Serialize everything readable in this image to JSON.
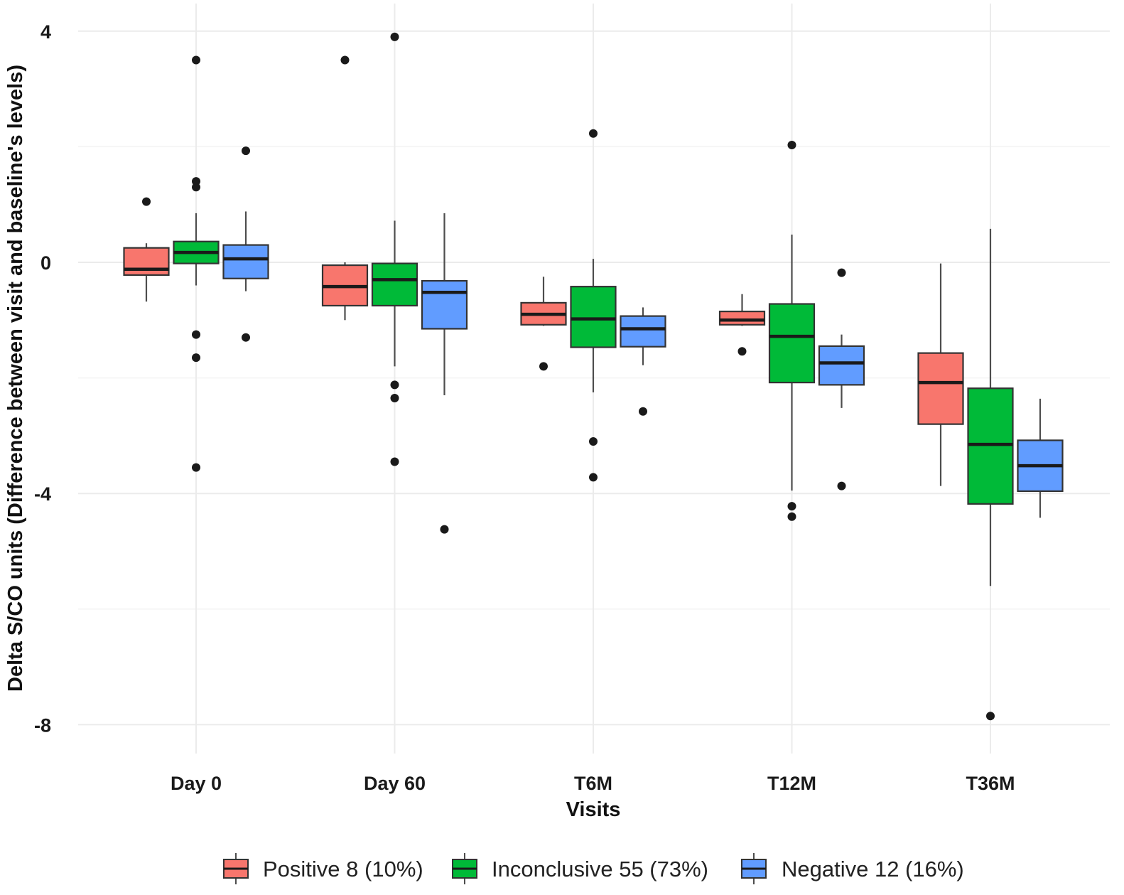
{
  "chart_data": {
    "type": "boxplot",
    "title": "",
    "xlabel": "Visits",
    "ylabel": "Delta S/CO units (Difference between visit and baseline's levels)",
    "ylim": [
      -8.5,
      4.4
    ],
    "yticks": [
      4,
      0,
      -4,
      -8
    ],
    "ytick_labels": [
      "4",
      "0",
      "-4",
      "-8"
    ],
    "grid": true,
    "legend_position": "bottom",
    "categories": [
      "Day 0",
      "Day 60",
      "T6M",
      "T12M",
      "T36M"
    ],
    "series": [
      {
        "name": "Positive 8 (10%)",
        "color": "#F8766D",
        "boxes": [
          {
            "whislo": -0.68,
            "q1": -0.22,
            "med": -0.12,
            "q3": 0.25,
            "whishi": 0.33,
            "fliers": [
              1.05
            ]
          },
          {
            "whislo": -1.0,
            "q1": -0.75,
            "med": -0.42,
            "q3": -0.05,
            "whishi": 0.0,
            "fliers": [
              3.5
            ]
          },
          {
            "whislo": -1.1,
            "q1": -1.08,
            "med": -0.9,
            "q3": -0.7,
            "whishi": -0.25,
            "fliers": [
              -1.8
            ]
          },
          {
            "whislo": -1.1,
            "q1": -1.08,
            "med": -1.0,
            "q3": -0.85,
            "whishi": -0.55,
            "fliers": [
              -1.54
            ]
          },
          {
            "whislo": -3.87,
            "q1": -2.8,
            "med": -2.08,
            "q3": -1.57,
            "whishi": -0.02,
            "fliers": []
          }
        ]
      },
      {
        "name": "Inconclusive 55 (73%)",
        "color": "#00BA38",
        "boxes": [
          {
            "whislo": -0.4,
            "q1": -0.02,
            "med": 0.17,
            "q3": 0.36,
            "whishi": 0.85,
            "fliers": [
              3.5,
              1.4,
              1.3,
              -1.25,
              -1.65,
              -3.55
            ]
          },
          {
            "whislo": -1.8,
            "q1": -0.75,
            "med": -0.3,
            "q3": -0.02,
            "whishi": 0.72,
            "fliers": [
              3.9,
              -2.12,
              -2.35,
              -3.45
            ]
          },
          {
            "whislo": -2.25,
            "q1": -1.47,
            "med": -0.98,
            "q3": -0.42,
            "whishi": 0.06,
            "fliers": [
              2.23,
              -3.1,
              -3.72
            ]
          },
          {
            "whislo": -3.95,
            "q1": -2.08,
            "med": -1.28,
            "q3": -0.72,
            "whishi": 0.48,
            "fliers": [
              2.03,
              -4.22,
              -4.4
            ]
          },
          {
            "whislo": -5.6,
            "q1": -4.18,
            "med": -3.15,
            "q3": -2.18,
            "whishi": 0.58,
            "fliers": [
              -7.85
            ]
          }
        ]
      },
      {
        "name": "Negative 12 (16%)",
        "color": "#619CFF",
        "boxes": [
          {
            "whislo": -0.5,
            "q1": -0.28,
            "med": 0.06,
            "q3": 0.3,
            "whishi": 0.88,
            "fliers": [
              1.93,
              -1.3
            ]
          },
          {
            "whislo": -2.3,
            "q1": -1.15,
            "med": -0.52,
            "q3": -0.32,
            "whishi": 0.85,
            "fliers": [
              -4.62
            ]
          },
          {
            "whislo": -1.78,
            "q1": -1.46,
            "med": -1.15,
            "q3": -0.93,
            "whishi": -0.78,
            "fliers": [
              -2.58
            ]
          },
          {
            "whislo": -2.52,
            "q1": -2.12,
            "med": -1.74,
            "q3": -1.45,
            "whishi": -1.25,
            "fliers": [
              -0.18,
              -3.87
            ]
          },
          {
            "whislo": -4.42,
            "q1": -3.96,
            "med": -3.52,
            "q3": -3.08,
            "whishi": -2.36,
            "fliers": []
          }
        ]
      }
    ]
  }
}
